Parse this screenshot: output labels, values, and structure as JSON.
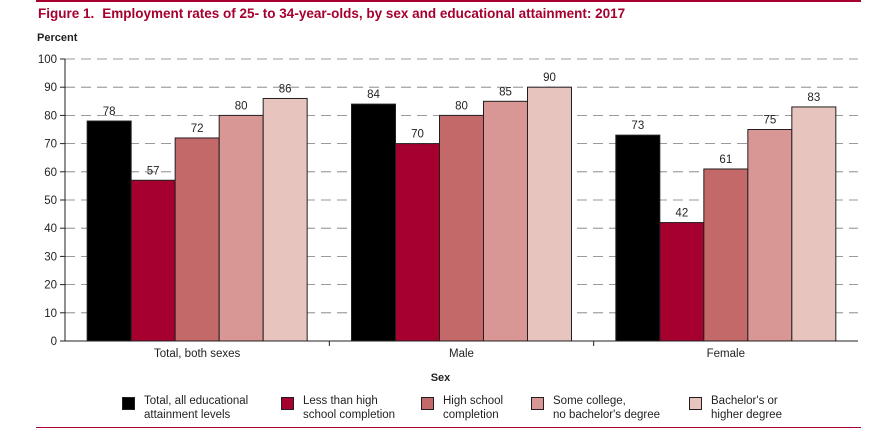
{
  "figure": {
    "label": "Figure 1.",
    "title": "Employment rates of 25- to 34-year-olds, by sex and educational attainment: 2017"
  },
  "chart_data": {
    "type": "bar",
    "title": "Employment rates of 25- to 34-year-olds, by sex and educational attainment: 2017",
    "ylabel": "Percent",
    "xlabel": "Sex",
    "ylim": [
      0,
      100
    ],
    "yticks": [
      0,
      10,
      20,
      30,
      40,
      50,
      60,
      70,
      80,
      90,
      100
    ],
    "grid": "dashed horizontal",
    "legend_position": "bottom",
    "categories": [
      "Total, both sexes",
      "Male",
      "Female"
    ],
    "series": [
      {
        "name": "Total, all educational\nattainment levels",
        "color": "#000000",
        "values": [
          78,
          84,
          73
        ]
      },
      {
        "name": "Less than high\nschool completion",
        "color": "#a6002f",
        "values": [
          57,
          70,
          42
        ]
      },
      {
        "name": "High school\ncompletion",
        "color": "#c4696a",
        "values": [
          72,
          80,
          61
        ]
      },
      {
        "name": "Some college,\nno bachelor's degree",
        "color": "#d89795",
        "values": [
          80,
          85,
          75
        ]
      },
      {
        "name": "Bachelor's or\nhigher degree",
        "color": "#e8c4bf",
        "values": [
          86,
          90,
          83
        ]
      }
    ]
  }
}
